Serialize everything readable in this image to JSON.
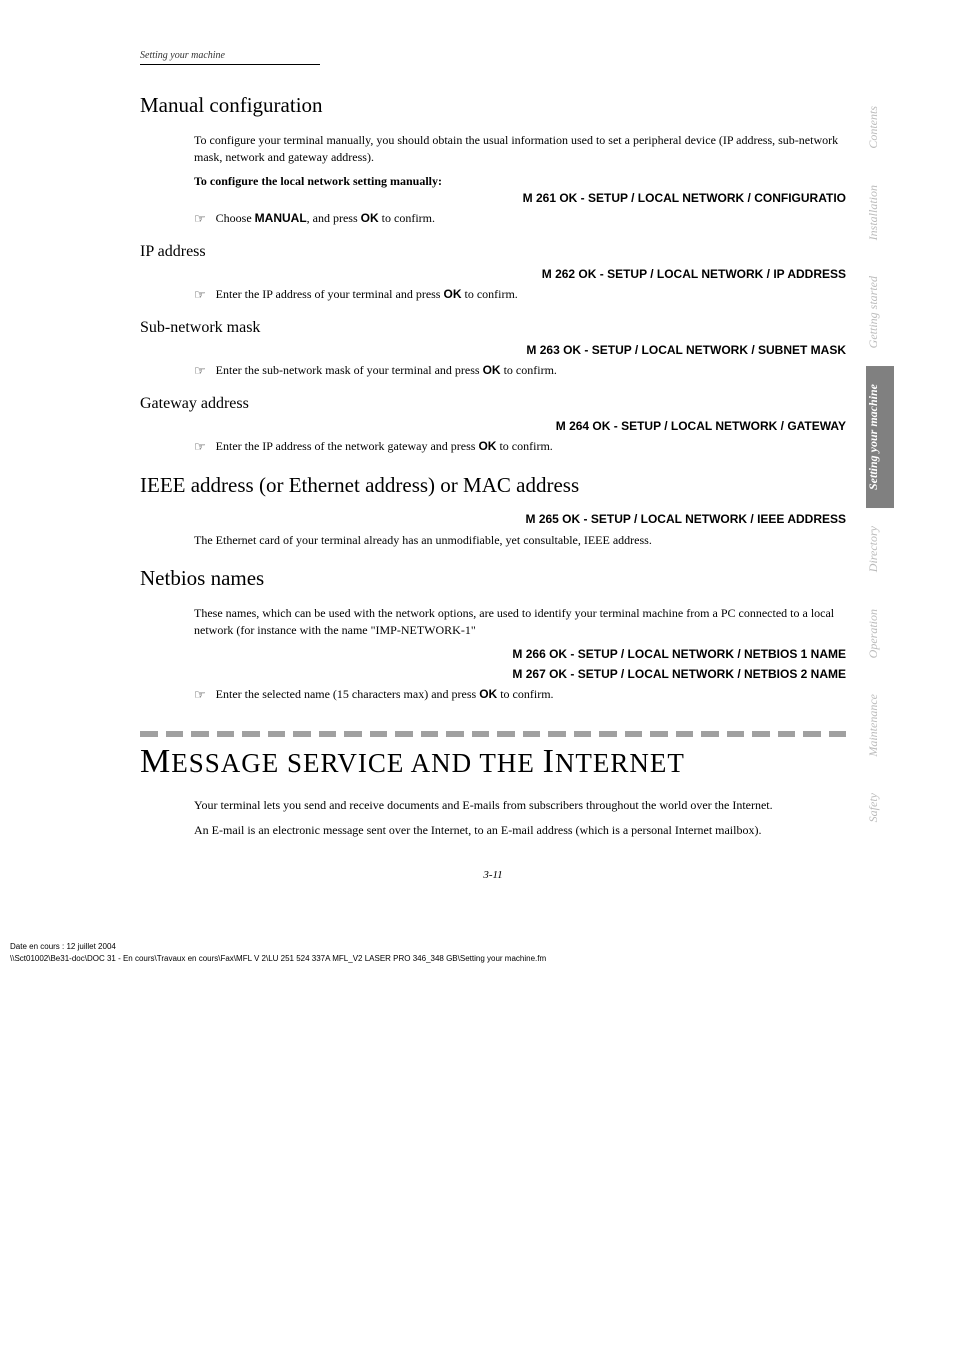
{
  "running_head": "Setting your machine",
  "side_tabs": [
    {
      "label": "Contents",
      "active": false
    },
    {
      "label": "Installation",
      "active": false
    },
    {
      "label": "Getting started",
      "active": false
    },
    {
      "label": "Setting your machine",
      "active": true
    },
    {
      "label": "Directory",
      "active": false
    },
    {
      "label": "Operation",
      "active": false
    },
    {
      "label": "Maintenance",
      "active": false
    },
    {
      "label": "Safety",
      "active": false
    }
  ],
  "manual_config": {
    "title": "Manual configuration",
    "intro": "To configure your terminal manually, you should obtain the usual information used to set a peripheral device (IP address, sub-network mask, network and gateway address).",
    "lead": "To configure the local network setting manually:",
    "menu": "M 261 OK - SETUP / LOCAL NETWORK / CONFIGURATIO",
    "step_prefix": "Choose ",
    "step_bold": "MANUAL",
    "step_mid": ", and press ",
    "step_ok": "OK",
    "step_suffix": " to confirm."
  },
  "ip_address": {
    "title": "IP address",
    "menu": "M 262 OK - SETUP / LOCAL NETWORK / IP ADDRESS",
    "step_prefix": "Enter the IP address of your terminal and press ",
    "step_ok": "OK",
    "step_suffix": " to confirm."
  },
  "subnet": {
    "title": "Sub-network mask",
    "menu": "M 263 OK - SETUP / LOCAL NETWORK / SUBNET MASK",
    "step_prefix": "Enter the sub-network mask of your terminal and press ",
    "step_ok": "OK",
    "step_suffix": " to confirm."
  },
  "gateway": {
    "title": "Gateway address",
    "menu": "M 264 OK - SETUP / LOCAL NETWORK / GATEWAY",
    "step_prefix": "Enter the IP address of the network gateway and press ",
    "step_ok": "OK",
    "step_suffix": " to confirm."
  },
  "ieee": {
    "title": "IEEE address (or Ethernet address) or MAC address",
    "menu": "M 265 OK - SETUP / LOCAL NETWORK / IEEE ADDRESS",
    "body": "The Ethernet card of your terminal already has an unmodifiable, yet consultable, IEEE address."
  },
  "netbios": {
    "title": "Netbios names",
    "intro": "These names, which can be used with the network options, are used to identify your terminal machine from a PC connected to a local network (for instance with the name \"IMP-NETWORK-1\"",
    "menu1": "M 266 OK - SETUP / LOCAL NETWORK / NETBIOS 1 NAME",
    "menu2": "M 267 OK - SETUP / LOCAL NETWORK / NETBIOS 2 NAME",
    "step_prefix": "Enter the selected name (15 characters max) and press ",
    "step_ok": "OK",
    "step_suffix": " to confirm."
  },
  "big_section": {
    "word1_first": "M",
    "word1_rest": "ESSAGE SERVICE AND THE ",
    "word2_first": "I",
    "word2_rest": "NTERNET",
    "para1": "Your terminal lets you send and receive documents and E-mails from subscribers throughout the world over the Internet.",
    "para2": "An E-mail is an electronic message sent over the Internet, to an E-mail address (which is a personal Internet mailbox)."
  },
  "page_number": "3-11",
  "footer": {
    "line1": "Date en cours : 12 juillet 2004",
    "line2": "\\\\Sct01002\\Be31-doc\\DOC 31 - En cours\\Travaux en cours\\Fax\\MFL V 2\\LU 251 524 337A MFL_V2 LASER PRO 346_348 GB\\Setting your machine.fm"
  },
  "divider_count": 28,
  "colors": {
    "tab_inactive": "#bbbbbb",
    "tab_active_bg": "#808080",
    "tab_active_fg": "#ffffff",
    "divider": "#a0a0a0"
  }
}
